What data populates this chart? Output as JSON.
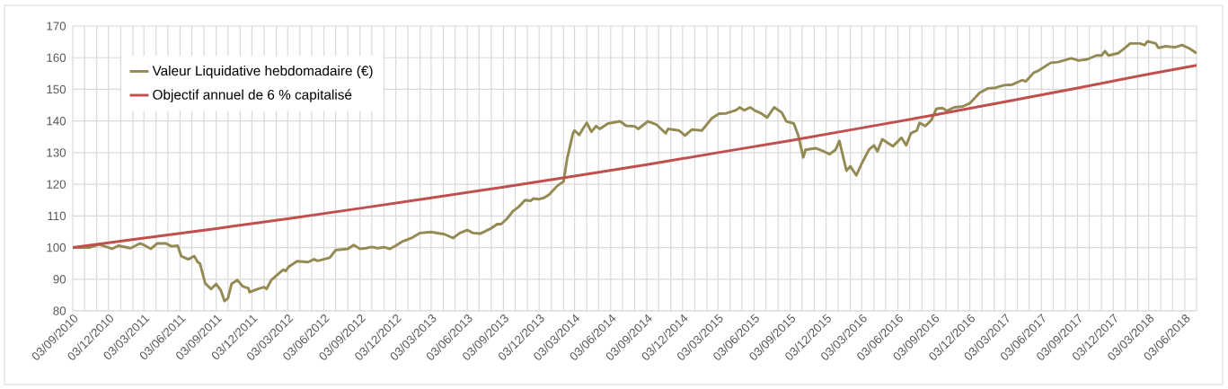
{
  "chart_data": {
    "type": "line",
    "legend": "top left",
    "marker": "none",
    "line_style": "solid",
    "grid": true,
    "xlim": [
      "2010-09-03",
      "2018-07-03"
    ],
    "ylim": [
      80,
      170
    ],
    "yticks": [
      80,
      90,
      100,
      110,
      120,
      130,
      140,
      150,
      160,
      170
    ],
    "xticks": [
      {
        "value": "2010-09-03",
        "label": "03/09/2010"
      },
      {
        "value": "2010-10-03",
        "label": null
      },
      {
        "value": "2010-11-03",
        "label": null
      },
      {
        "value": "2010-12-03",
        "label": "03/12/2010"
      },
      {
        "value": "2011-01-03",
        "label": null
      },
      {
        "value": "2011-02-03",
        "label": null
      },
      {
        "value": "2011-03-03",
        "label": "03/03/2011"
      },
      {
        "value": "2011-04-03",
        "label": null
      },
      {
        "value": "2011-05-03",
        "label": null
      },
      {
        "value": "2011-06-03",
        "label": "03/06/2011"
      },
      {
        "value": "2011-07-03",
        "label": null
      },
      {
        "value": "2011-08-03",
        "label": null
      },
      {
        "value": "2011-09-03",
        "label": "03/09/2011"
      },
      {
        "value": "2011-10-03",
        "label": null
      },
      {
        "value": "2011-11-03",
        "label": null
      },
      {
        "value": "2011-12-03",
        "label": "03/12/2011"
      },
      {
        "value": "2012-01-03",
        "label": null
      },
      {
        "value": "2012-02-03",
        "label": null
      },
      {
        "value": "2012-03-03",
        "label": "03/03/2012"
      },
      {
        "value": "2012-04-03",
        "label": null
      },
      {
        "value": "2012-05-03",
        "label": null
      },
      {
        "value": "2012-06-03",
        "label": "03/06/2012"
      },
      {
        "value": "2012-07-03",
        "label": null
      },
      {
        "value": "2012-08-03",
        "label": null
      },
      {
        "value": "2012-09-03",
        "label": "03/09/2012"
      },
      {
        "value": "2012-10-03",
        "label": null
      },
      {
        "value": "2012-11-03",
        "label": null
      },
      {
        "value": "2012-12-03",
        "label": "03/12/2012"
      },
      {
        "value": "2013-01-03",
        "label": null
      },
      {
        "value": "2013-02-03",
        "label": null
      },
      {
        "value": "2013-03-03",
        "label": "03/03/2013"
      },
      {
        "value": "2013-04-03",
        "label": null
      },
      {
        "value": "2013-05-03",
        "label": null
      },
      {
        "value": "2013-06-03",
        "label": "03/06/2013"
      },
      {
        "value": "2013-07-03",
        "label": null
      },
      {
        "value": "2013-08-03",
        "label": null
      },
      {
        "value": "2013-09-03",
        "label": "03/09/2013"
      },
      {
        "value": "2013-10-03",
        "label": null
      },
      {
        "value": "2013-11-03",
        "label": null
      },
      {
        "value": "2013-12-03",
        "label": "03/12/2013"
      },
      {
        "value": "2014-01-03",
        "label": null
      },
      {
        "value": "2014-02-03",
        "label": null
      },
      {
        "value": "2014-03-03",
        "label": "03/03/2014"
      },
      {
        "value": "2014-04-03",
        "label": null
      },
      {
        "value": "2014-05-03",
        "label": null
      },
      {
        "value": "2014-06-03",
        "label": "03/06/2014"
      },
      {
        "value": "2014-07-03",
        "label": null
      },
      {
        "value": "2014-08-03",
        "label": null
      },
      {
        "value": "2014-09-03",
        "label": "03/09/2014"
      },
      {
        "value": "2014-10-03",
        "label": null
      },
      {
        "value": "2014-11-03",
        "label": null
      },
      {
        "value": "2014-12-03",
        "label": "03/12/2014"
      },
      {
        "value": "2015-01-03",
        "label": null
      },
      {
        "value": "2015-02-03",
        "label": null
      },
      {
        "value": "2015-03-03",
        "label": "03/03/2015"
      },
      {
        "value": "2015-04-03",
        "label": null
      },
      {
        "value": "2015-05-03",
        "label": null
      },
      {
        "value": "2015-06-03",
        "label": "03/06/2015"
      },
      {
        "value": "2015-07-03",
        "label": null
      },
      {
        "value": "2015-08-03",
        "label": null
      },
      {
        "value": "2015-09-03",
        "label": "03/09/2015"
      },
      {
        "value": "2015-10-03",
        "label": null
      },
      {
        "value": "2015-11-03",
        "label": null
      },
      {
        "value": "2015-12-03",
        "label": "03/12/2015"
      },
      {
        "value": "2016-01-03",
        "label": null
      },
      {
        "value": "2016-02-03",
        "label": null
      },
      {
        "value": "2016-03-03",
        "label": "03/03/2016"
      },
      {
        "value": "2016-04-03",
        "label": null
      },
      {
        "value": "2016-05-03",
        "label": null
      },
      {
        "value": "2016-06-03",
        "label": "03/06/2016"
      },
      {
        "value": "2016-07-03",
        "label": null
      },
      {
        "value": "2016-08-03",
        "label": null
      },
      {
        "value": "2016-09-03",
        "label": "03/09/2016"
      },
      {
        "value": "2016-10-03",
        "label": null
      },
      {
        "value": "2016-11-03",
        "label": null
      },
      {
        "value": "2016-12-03",
        "label": "03/12/2016"
      },
      {
        "value": "2017-01-03",
        "label": null
      },
      {
        "value": "2017-02-03",
        "label": null
      },
      {
        "value": "2017-03-03",
        "label": "03/03/2017"
      },
      {
        "value": "2017-04-03",
        "label": null
      },
      {
        "value": "2017-05-03",
        "label": null
      },
      {
        "value": "2017-06-03",
        "label": "03/06/2017"
      },
      {
        "value": "2017-07-03",
        "label": null
      },
      {
        "value": "2017-08-03",
        "label": null
      },
      {
        "value": "2017-09-03",
        "label": "03/09/2017"
      },
      {
        "value": "2017-10-03",
        "label": null
      },
      {
        "value": "2017-11-03",
        "label": null
      },
      {
        "value": "2017-12-03",
        "label": "03/12/2017"
      },
      {
        "value": "2018-01-03",
        "label": null
      },
      {
        "value": "2018-02-03",
        "label": null
      },
      {
        "value": "2018-03-03",
        "label": "03/03/2018"
      },
      {
        "value": "2018-04-03",
        "label": null
      },
      {
        "value": "2018-05-03",
        "label": null
      },
      {
        "value": "2018-06-03",
        "label": "03/06/2018"
      },
      {
        "value": "2018-07-03",
        "label": null
      }
    ],
    "series": [
      {
        "name": "Valeur Liquidative hebdomadaire (€)",
        "color": "#948a54",
        "x": [
          "2010-09-03",
          "2010-10-15",
          "2010-11-09",
          "2010-12-12",
          "2010-12-28",
          "2011-01-28",
          "2011-02-21",
          "2011-02-28",
          "2011-03-21",
          "2011-04-06",
          "2011-04-28",
          "2011-05-12",
          "2011-05-28",
          "2011-06-06",
          "2011-06-24",
          "2011-07-09",
          "2011-07-18",
          "2011-07-24",
          "2011-08-06",
          "2011-08-21",
          "2011-09-03",
          "2011-09-15",
          "2011-09-24",
          "2011-10-03",
          "2011-10-12",
          "2011-10-27",
          "2011-11-09",
          "2011-11-24",
          "2011-11-27",
          "2011-12-18",
          "2012-01-03",
          "2012-01-09",
          "2012-01-21",
          "2012-02-12",
          "2012-02-21",
          "2012-02-27",
          "2012-03-06",
          "2012-03-27",
          "2012-04-24",
          "2012-05-09",
          "2012-05-18",
          "2012-06-03",
          "2012-06-18",
          "2012-07-03",
          "2012-07-18",
          "2012-08-03",
          "2012-08-18",
          "2012-09-03",
          "2012-09-18",
          "2012-10-03",
          "2012-10-18",
          "2012-11-03",
          "2012-11-18",
          "2012-12-03",
          "2012-12-21",
          "2013-01-15",
          "2013-02-03",
          "2013-03-03",
          "2013-04-06",
          "2013-04-28",
          "2013-05-15",
          "2013-06-03",
          "2013-06-18",
          "2013-07-06",
          "2013-08-03",
          "2013-08-18",
          "2013-08-28",
          "2013-09-12",
          "2013-09-27",
          "2013-10-12",
          "2013-10-28",
          "2013-11-12",
          "2013-11-18",
          "2013-12-03",
          "2013-12-15",
          "2013-12-28",
          "2014-01-18",
          "2014-02-03",
          "2014-02-12",
          "2014-02-27",
          "2014-03-03",
          "2014-03-15",
          "2014-03-24",
          "2014-04-03",
          "2014-04-15",
          "2014-04-27",
          "2014-05-06",
          "2014-05-27",
          "2014-06-27",
          "2014-07-12",
          "2014-08-03",
          "2014-08-12",
          "2014-09-06",
          "2014-09-27",
          "2014-10-21",
          "2014-10-27",
          "2014-11-24",
          "2014-12-09",
          "2014-12-27",
          "2015-01-21",
          "2015-02-15",
          "2015-03-06",
          "2015-03-24",
          "2015-04-18",
          "2015-04-27",
          "2015-05-09",
          "2015-05-24",
          "2015-06-06",
          "2015-06-21",
          "2015-07-06",
          "2015-07-24",
          "2015-08-12",
          "2015-08-24",
          "2015-09-12",
          "2015-09-24",
          "2015-10-06",
          "2015-10-12",
          "2015-11-06",
          "2015-11-27",
          "2015-12-12",
          "2015-12-27",
          "2016-01-06",
          "2016-01-24",
          "2016-02-03",
          "2016-02-18",
          "2016-03-03",
          "2016-03-21",
          "2016-04-03",
          "2016-04-12",
          "2016-04-24",
          "2016-05-21",
          "2016-06-12",
          "2016-06-24",
          "2016-07-06",
          "2016-07-21",
          "2016-07-28",
          "2016-08-12",
          "2016-08-27",
          "2016-09-09",
          "2016-09-24",
          "2016-10-06",
          "2016-10-24",
          "2016-11-15",
          "2016-12-03",
          "2016-12-28",
          "2017-01-18",
          "2017-02-06",
          "2017-02-28",
          "2017-03-21",
          "2017-04-15",
          "2017-04-24",
          "2017-05-15",
          "2017-05-28",
          "2017-06-27",
          "2017-07-15",
          "2017-08-18",
          "2017-09-06",
          "2017-09-28",
          "2017-10-21",
          "2017-11-03",
          "2017-11-12",
          "2017-11-21",
          "2017-12-15",
          "2017-12-28",
          "2018-01-15",
          "2018-02-09",
          "2018-02-21",
          "2018-02-28",
          "2018-03-21",
          "2018-03-28",
          "2018-04-15",
          "2018-05-09",
          "2018-05-27",
          "2018-06-15",
          "2018-07-03"
        ],
        "values": [
          100,
          100,
          101,
          99.6,
          100.6,
          99.8,
          101.3,
          101,
          99.6,
          101.3,
          101.3,
          100.4,
          100.6,
          97.3,
          96.3,
          97.3,
          95.4,
          94.9,
          88.7,
          86.9,
          88.5,
          86.4,
          83.1,
          84,
          88.5,
          89.7,
          87.8,
          87.1,
          85.9,
          86.9,
          87.5,
          86.9,
          89.7,
          92.1,
          93,
          92.6,
          94,
          95.7,
          95.4,
          96.3,
          95.8,
          96.3,
          96.8,
          99.2,
          99.4,
          99.6,
          100.8,
          99.6,
          99.8,
          100.2,
          99.8,
          100.1,
          99.6,
          100.6,
          102,
          103.2,
          104.6,
          104.9,
          104.2,
          103,
          104.6,
          105.5,
          104.6,
          104.4,
          106.1,
          107.4,
          107.4,
          109.1,
          111.5,
          112.9,
          115,
          114.8,
          115.5,
          115.3,
          115.7,
          116.7,
          119.5,
          120.9,
          128,
          136.1,
          137,
          135.6,
          137.5,
          139.4,
          136.6,
          138.4,
          137.5,
          139.2,
          139.9,
          138.5,
          138.3,
          137.5,
          139.9,
          138.9,
          136.1,
          137.5,
          137,
          135.4,
          137.3,
          137,
          140.8,
          142.3,
          142.4,
          143.4,
          144.3,
          143.4,
          144.3,
          143.2,
          142.4,
          141.1,
          144.3,
          142.7,
          139.9,
          139.2,
          135.2,
          128.5,
          130.9,
          131.4,
          130.4,
          129.5,
          130.9,
          133.7,
          124.3,
          125.7,
          122.8,
          126.6,
          130.9,
          132.3,
          130.4,
          134.2,
          132,
          134.7,
          132.3,
          136.1,
          137,
          139.4,
          138.4,
          140.3,
          143.9,
          144.1,
          143.2,
          144.3,
          144.6,
          145.6,
          148.9,
          150.3,
          150.5,
          151.3,
          151.5,
          152.9,
          152.5,
          155.3,
          156,
          158.4,
          158.6,
          159.8,
          159.1,
          159.5,
          160.7,
          160.7,
          162.1,
          160.7,
          161.4,
          162.6,
          164.5,
          164.5,
          164,
          165.2,
          164.5,
          163.1,
          163.6,
          163.3,
          164,
          162.9,
          161.4
        ]
      },
      {
        "name": "Objectif annuel de 6 % capitalisé",
        "color": "#c0504d",
        "x": [
          "2010-09-03",
          "2011-03-03",
          "2011-09-03",
          "2012-03-03",
          "2012-09-03",
          "2013-03-03",
          "2013-09-03",
          "2014-03-03",
          "2014-09-03",
          "2015-03-03",
          "2015-09-03",
          "2016-03-03",
          "2016-09-03",
          "2017-03-03",
          "2017-09-03",
          "2018-03-03",
          "2018-07-03"
        ],
        "values": [
          100,
          103,
          106,
          109.1,
          112.4,
          115.7,
          119.1,
          122.6,
          126.2,
          130,
          133.8,
          137.8,
          141.9,
          146.1,
          150.4,
          154.8,
          157.6
        ]
      }
    ]
  }
}
